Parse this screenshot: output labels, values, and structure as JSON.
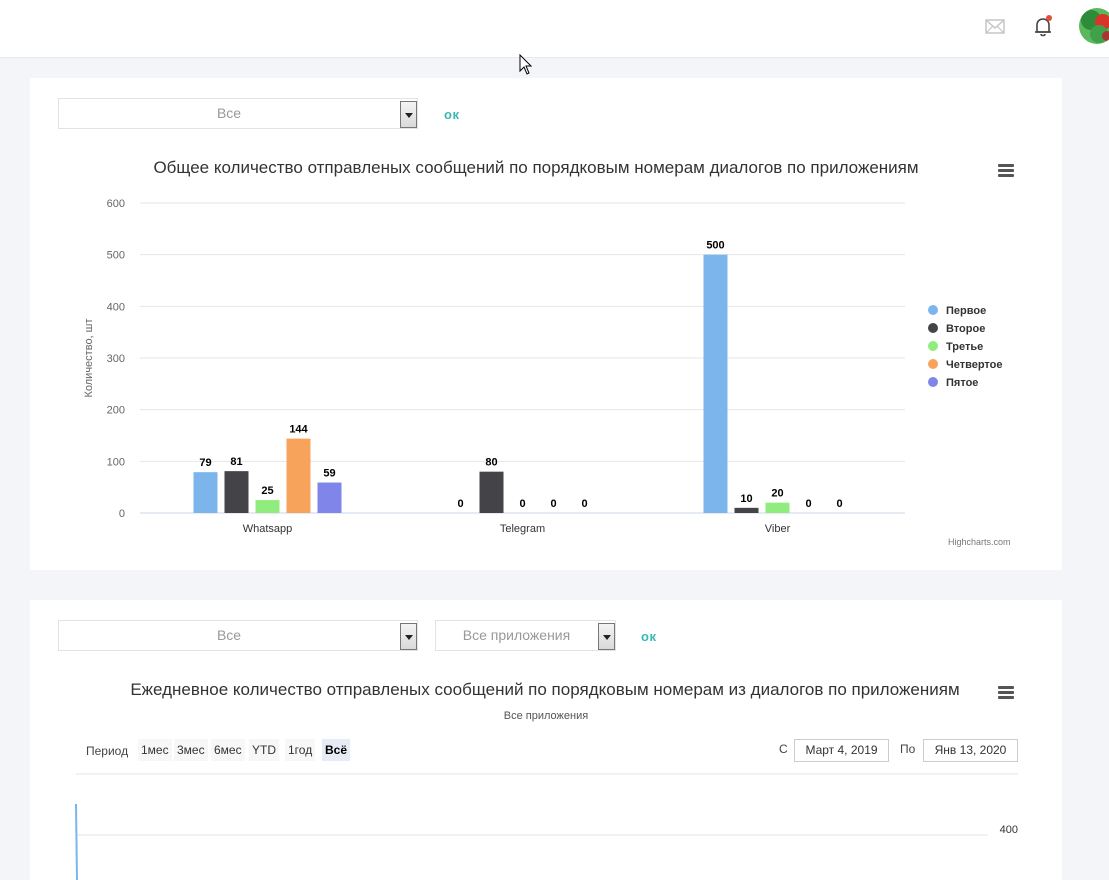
{
  "header": {
    "mail_icon": "envelope-icon",
    "bell_icon": "bell-icon",
    "notification_color": "#e74c3c"
  },
  "card1": {
    "filter_select_value": "Все",
    "ok_label": "ок",
    "chart_data": {
      "type": "bar",
      "title": "Общее количество отправленых сообщений по порядковым номерам диалогов по приложениям",
      "ylabel": "Количество, шт",
      "xlabel": "",
      "ylim": [
        0,
        600
      ],
      "yticks": [
        0,
        100,
        200,
        300,
        400,
        500,
        600
      ],
      "categories": [
        "Whatsapp",
        "Telegram",
        "Viber"
      ],
      "series": [
        {
          "name": "Первое",
          "color": "#7cb5ec",
          "values": [
            79,
            0,
            500
          ]
        },
        {
          "name": "Второе",
          "color": "#434348",
          "values": [
            81,
            80,
            10
          ]
        },
        {
          "name": "Третье",
          "color": "#90ed7d",
          "values": [
            25,
            0,
            20
          ]
        },
        {
          "name": "Четвертое",
          "color": "#f7a35c",
          "values": [
            144,
            0,
            0
          ]
        },
        {
          "name": "Пятое",
          "color": "#8085e9",
          "values": [
            59,
            0,
            0
          ]
        }
      ],
      "legend": "right",
      "grid": true,
      "credits": "Highcharts.com"
    }
  },
  "card2": {
    "filter_select_value": "Все",
    "app_select_value": "Все приложения",
    "ok_label": "ок",
    "title": "Ежедневное количество отправленых сообщений по порядковым номерам из диалогов по приложениям",
    "subtitle": "Все приложения",
    "range_label": "Период",
    "range_buttons": [
      "1мес",
      "3мес",
      "6мес",
      "YTD",
      "1год",
      "Всё"
    ],
    "active_range": "Всё",
    "from_label": "С",
    "from_date": "Март 4, 2019",
    "to_label": "По",
    "to_date": "Янв 13, 2020",
    "y_tick_visible": "400"
  }
}
